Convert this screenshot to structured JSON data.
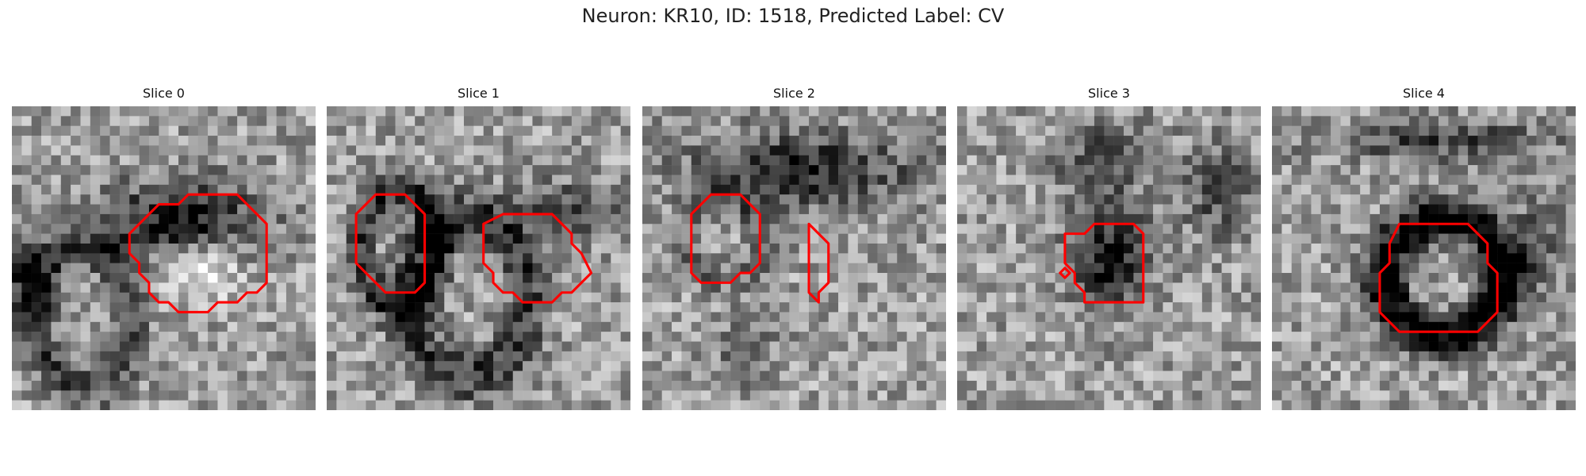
{
  "figure": {
    "title": "Neuron: KR10, ID: 1518, Predicted Label: CV",
    "contour_color": "#ff0000"
  },
  "slices": [
    {
      "title": "Slice 0",
      "seed": 11
    },
    {
      "title": "Slice 1",
      "seed": 23
    },
    {
      "title": "Slice 2",
      "seed": 37
    },
    {
      "title": "Slice 3",
      "seed": 41
    },
    {
      "title": "Slice 4",
      "seed": 59
    }
  ]
}
